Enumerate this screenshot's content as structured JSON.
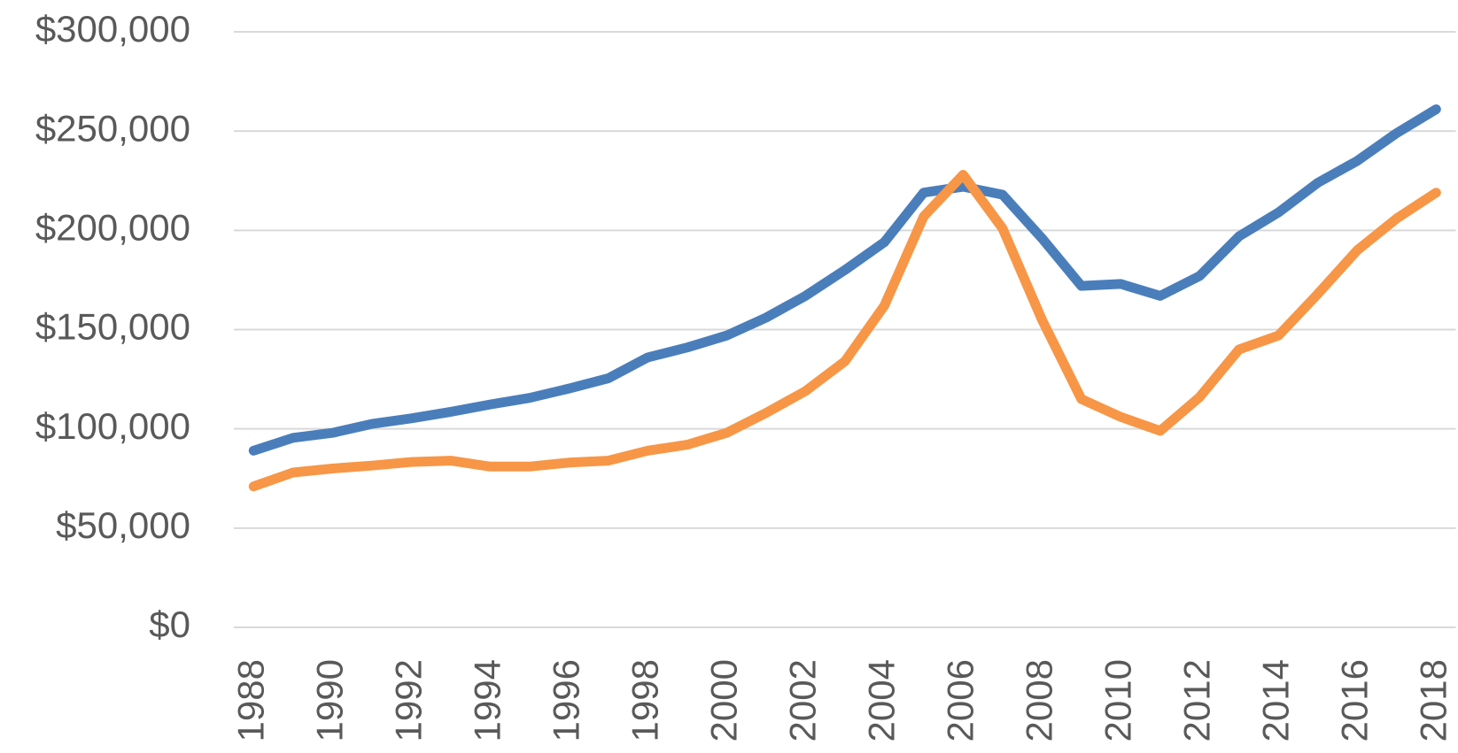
{
  "chart_data": {
    "type": "line",
    "categories": [
      "1988",
      null,
      "1990",
      null,
      "1992",
      null,
      "1994",
      null,
      "1996",
      null,
      "1998",
      null,
      "2000",
      null,
      "2002",
      null,
      "2004",
      null,
      "2006",
      null,
      "2008",
      null,
      "2010",
      null,
      "2012",
      null,
      "2014",
      null,
      "2016",
      null,
      "2018"
    ],
    "series": [
      {
        "color": "#4a7ebb",
        "values": [
          89000,
          95500,
          98000,
          102500,
          105300,
          108600,
          112300,
          115600,
          120300,
          125500,
          136000,
          141000,
          147000,
          156000,
          167000,
          180000,
          194000,
          219000,
          222000,
          218000,
          196000,
          172000,
          173000,
          167000,
          177000,
          197000,
          209000,
          224000,
          235000,
          249000,
          261000
        ]
      },
      {
        "color": "#f79646",
        "values": [
          71000,
          78000,
          80000,
          81500,
          83300,
          84000,
          81000,
          81000,
          83000,
          84000,
          89000,
          92000,
          98000,
          108000,
          119000,
          134000,
          162000,
          207000,
          228000,
          201000,
          155000,
          115000,
          106000,
          99000,
          116000,
          140000,
          147000,
          168000,
          190000,
          206000,
          219000
        ]
      }
    ],
    "ylim": [
      0,
      300000
    ],
    "yticks": [
      {
        "value": 0,
        "label": "$0"
      },
      {
        "value": 50000,
        "label": "$50,000"
      },
      {
        "value": 100000,
        "label": "$100,000"
      },
      {
        "value": 150000,
        "label": "$150,000"
      },
      {
        "value": 200000,
        "label": "$200,000"
      },
      {
        "value": 250000,
        "label": "$250,000"
      },
      {
        "value": 300000,
        "label": "$300,000"
      }
    ],
    "grid": true
  }
}
